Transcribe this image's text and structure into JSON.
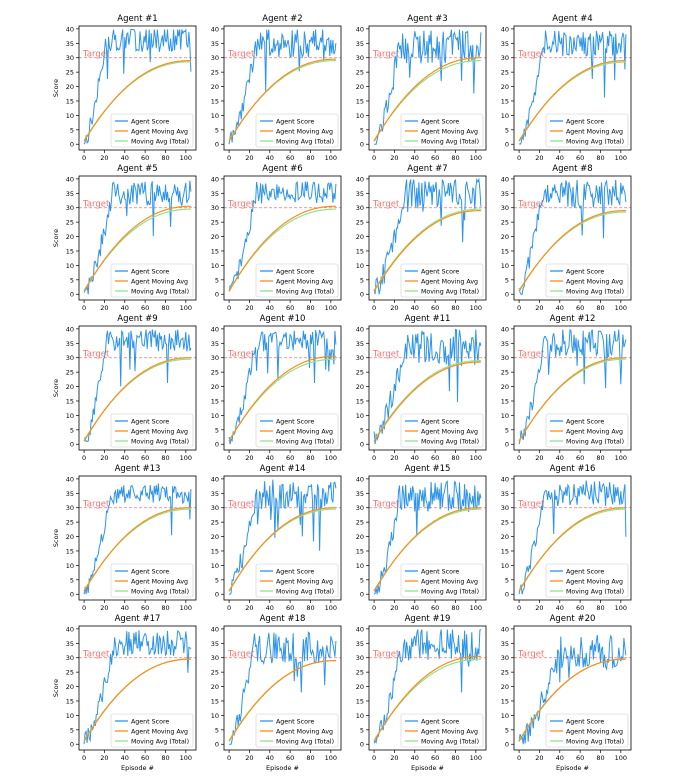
{
  "figure": {
    "common": {
      "type": "line",
      "ylabel": "Score",
      "xlabel": "Episode #",
      "xticks": [
        "0",
        "20",
        "40",
        "60",
        "80",
        "100"
      ],
      "yticks": [
        "0",
        "5",
        "10",
        "15",
        "20",
        "25",
        "30",
        "35",
        "40"
      ],
      "xlim": [
        -5,
        110
      ],
      "ylim": [
        -2,
        41
      ],
      "target_label": "Target",
      "target_value": 30,
      "legend": [
        "Agent Score",
        "Agent Moving Avg",
        "Moving Avg (Total)"
      ],
      "legend_placement": "lower-right",
      "colors": {
        "score": "#2e94ea",
        "agent_avg": "#ff8c1a",
        "total_avg": "#8fe38f",
        "target": "#f07575",
        "axes": "#000000"
      }
    }
  },
  "chart_data": [
    {
      "title": "Agent #1",
      "cross_episode": 22,
      "score_level": 36.5,
      "score_noise": 4.5,
      "avg_final": 29.0,
      "total_final": 28.6
    },
    {
      "title": "Agent #2",
      "cross_episode": 27,
      "score_level": 35.0,
      "score_noise": 5.0,
      "avg_final": 29.5,
      "total_final": 29.0
    },
    {
      "title": "Agent #3",
      "cross_episode": 25,
      "score_level": 34.0,
      "score_noise": 6.0,
      "avg_final": 30.0,
      "total_final": 29.0
    },
    {
      "title": "Agent #4",
      "cross_episode": 25,
      "score_level": 35.0,
      "score_noise": 4.5,
      "avg_final": 29.0,
      "total_final": 28.5
    },
    {
      "title": "Agent #5",
      "cross_episode": 28,
      "score_level": 35.0,
      "score_noise": 4.5,
      "avg_final": 30.5,
      "total_final": 29.5
    },
    {
      "title": "Agent #6",
      "cross_episode": 27,
      "score_level": 35.5,
      "score_noise": 4.0,
      "avg_final": 30.5,
      "total_final": 29.5
    },
    {
      "title": "Agent #7",
      "cross_episode": 30,
      "score_level": 34.5,
      "score_noise": 6.0,
      "avg_final": 29.0,
      "total_final": 29.5
    },
    {
      "title": "Agent #8",
      "cross_episode": 22,
      "score_level": 35.0,
      "score_noise": 5.0,
      "avg_final": 29.0,
      "total_final": 28.5
    },
    {
      "title": "Agent #9",
      "cross_episode": 22,
      "score_level": 36.0,
      "score_noise": 4.0,
      "avg_final": 30.0,
      "total_final": 29.5
    },
    {
      "title": "Agent #10",
      "cross_episode": 27,
      "score_level": 36.0,
      "score_noise": 4.0,
      "avg_final": 30.5,
      "total_final": 29.5
    },
    {
      "title": "Agent #11",
      "cross_episode": 30,
      "score_level": 33.5,
      "score_noise": 6.5,
      "avg_final": 28.5,
      "total_final": 29.0
    },
    {
      "title": "Agent #12",
      "cross_episode": 25,
      "score_level": 35.0,
      "score_noise": 5.0,
      "avg_final": 30.0,
      "total_final": 29.5
    },
    {
      "title": "Agent #13",
      "cross_episode": 27,
      "score_level": 35.0,
      "score_noise": 3.5,
      "avg_final": 30.0,
      "total_final": 29.5
    },
    {
      "title": "Agent #14",
      "cross_episode": 27,
      "score_level": 34.5,
      "score_noise": 5.5,
      "avg_final": 30.0,
      "total_final": 29.5
    },
    {
      "title": "Agent #15",
      "cross_episode": 25,
      "score_level": 34.0,
      "score_noise": 5.5,
      "avg_final": 30.0,
      "total_final": 29.5
    },
    {
      "title": "Agent #16",
      "cross_episode": 25,
      "score_level": 35.0,
      "score_noise": 4.5,
      "avg_final": 30.0,
      "total_final": 29.5
    },
    {
      "title": "Agent #17",
      "cross_episode": 30,
      "score_level": 35.0,
      "score_noise": 4.5,
      "avg_final": 29.5,
      "total_final": 29.5
    },
    {
      "title": "Agent #18",
      "cross_episode": 25,
      "score_level": 33.5,
      "score_noise": 5.5,
      "avg_final": 29.0,
      "total_final": 29.0
    },
    {
      "title": "Agent #19",
      "cross_episode": 27,
      "score_level": 34.5,
      "score_noise": 6.0,
      "avg_final": 30.5,
      "total_final": 29.5
    },
    {
      "title": "Agent #20",
      "cross_episode": 40,
      "score_level": 32.0,
      "score_noise": 6.0,
      "avg_final": 29.5,
      "total_final": 29.5
    }
  ]
}
